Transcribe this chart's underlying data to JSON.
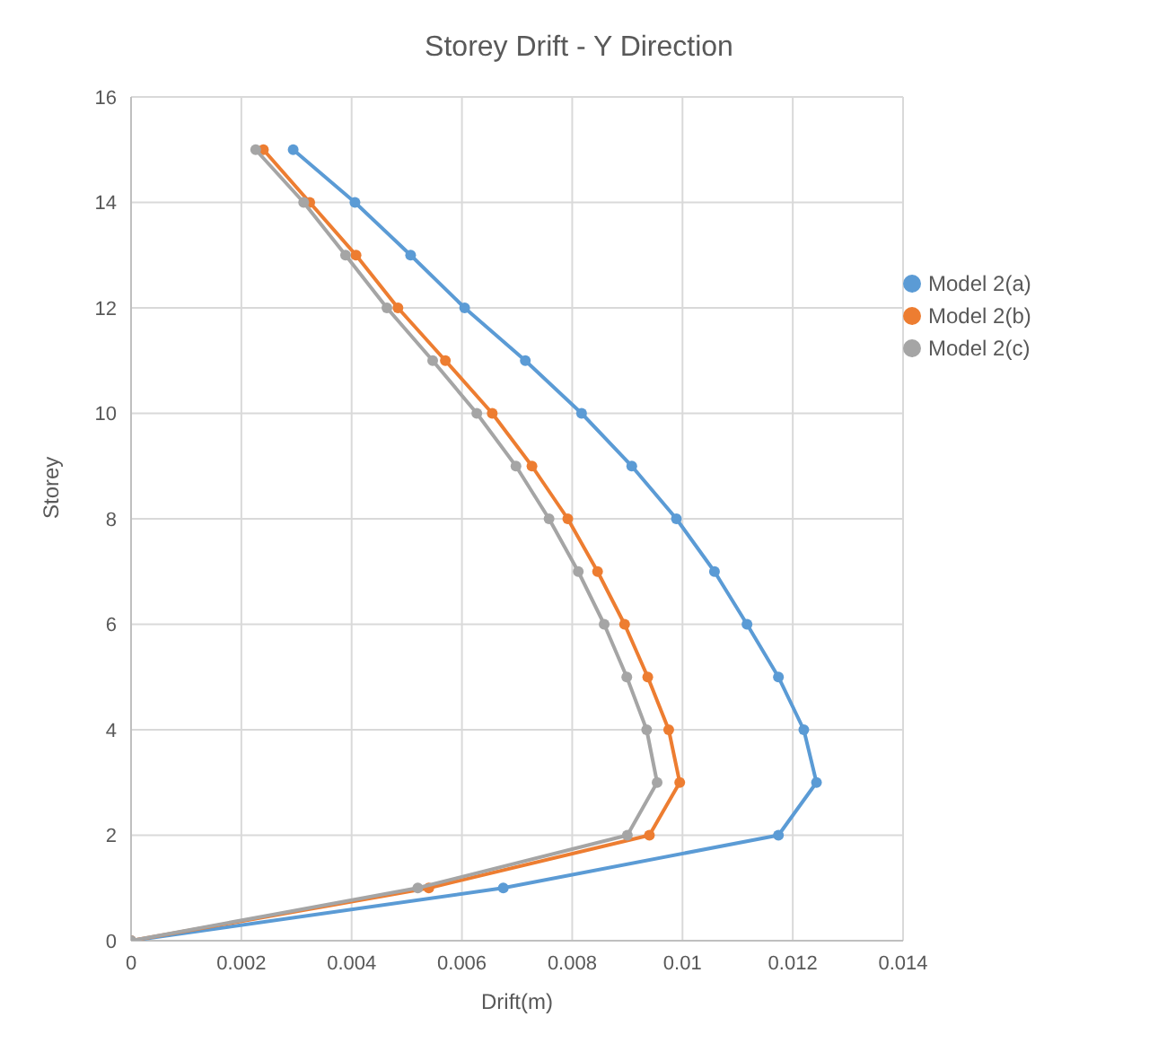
{
  "chart_data": {
    "type": "line",
    "title": "Storey Drift - Y Direction",
    "xlabel": "Drift(m)",
    "ylabel": "Storey",
    "xlim": [
      0,
      0.014
    ],
    "xticks": [
      0,
      0.002,
      0.004,
      0.006,
      0.008,
      0.01,
      0.012,
      0.014
    ],
    "ylim": [
      0,
      16
    ],
    "yticks": [
      0,
      2,
      4,
      6,
      8,
      10,
      12,
      14,
      16
    ],
    "grid": true,
    "legend": "top right",
    "marker": "circle",
    "line_style": "solid",
    "series": [
      {
        "name": "Model 2(a)",
        "color": "#5b9bd5",
        "x": [
          0,
          0.00675,
          0.01174,
          0.01243,
          0.0122,
          0.01174,
          0.01117,
          0.01058,
          0.00989,
          0.00908,
          0.00817,
          0.00715,
          0.00605,
          0.00507,
          0.00406,
          0.00294
        ],
        "values": [
          0,
          1,
          2,
          3,
          4,
          5,
          6,
          7,
          8,
          9,
          10,
          11,
          12,
          13,
          14,
          15
        ]
      },
      {
        "name": "Model 2(b)",
        "color": "#ed7d31",
        "x": [
          0,
          0.0054,
          0.0094,
          0.00995,
          0.00975,
          0.00937,
          0.00895,
          0.00846,
          0.00792,
          0.00727,
          0.00655,
          0.0057,
          0.00484,
          0.00408,
          0.00324,
          0.0024
        ],
        "values": [
          0,
          1,
          2,
          3,
          4,
          5,
          6,
          7,
          8,
          9,
          10,
          11,
          12,
          13,
          14,
          15
        ]
      },
      {
        "name": "Model 2(c)",
        "color": "#a5a5a5",
        "x": [
          0,
          0.0052,
          0.009,
          0.00954,
          0.00935,
          0.00899,
          0.00858,
          0.00811,
          0.00758,
          0.00698,
          0.00627,
          0.00547,
          0.00464,
          0.00389,
          0.00313,
          0.00226
        ],
        "values": [
          0,
          1,
          2,
          3,
          4,
          5,
          6,
          7,
          8,
          9,
          10,
          11,
          12,
          13,
          14,
          15
        ]
      }
    ]
  }
}
